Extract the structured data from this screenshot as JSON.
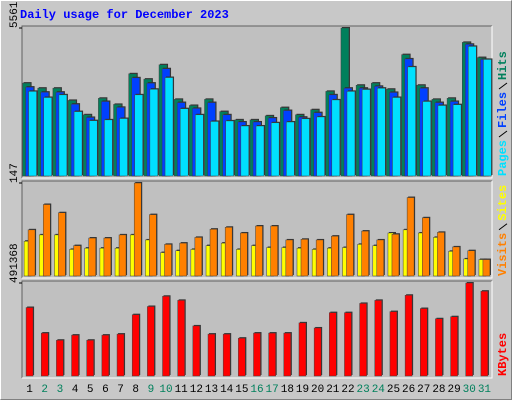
{
  "chart_data": [
    {
      "type": "bar",
      "title": "Daily usage for December 2023",
      "ylim": [
        0,
        5561
      ],
      "yticks": [
        5561
      ],
      "series": [
        {
          "name": "Hits",
          "color": "#00805c",
          "values": [
            3490,
            3300,
            3300,
            2840,
            2300,
            2920,
            2690,
            3840,
            3640,
            4180,
            2880,
            2650,
            2880,
            2420,
            2110,
            2110,
            2260,
            2570,
            2300,
            2490,
            3180,
            5561,
            3410,
            3490,
            3260,
            4560,
            3410,
            2880,
            2920,
            5020,
            4450
          ]
        },
        {
          "name": "Files",
          "color": "#0040ff",
          "values": [
            3340,
            3150,
            3150,
            2700,
            2200,
            2800,
            2580,
            3690,
            3490,
            4030,
            2760,
            2540,
            2760,
            2300,
            2030,
            2030,
            2180,
            2460,
            2210,
            2380,
            3050,
            3300,
            3300,
            3370,
            3140,
            4400,
            3300,
            2760,
            2800,
            4950,
            4380
          ]
        },
        {
          "name": "Pages",
          "color": "#00e0ff",
          "values": [
            3180,
            2950,
            3050,
            2420,
            2080,
            2110,
            2160,
            3050,
            3260,
            3700,
            2530,
            2300,
            2050,
            2070,
            1880,
            1880,
            2000,
            2030,
            2150,
            2220,
            2860,
            3180,
            3250,
            3300,
            2950,
            4100,
            2800,
            2650,
            2680,
            4870,
            4380
          ]
        }
      ]
    },
    {
      "type": "bar",
      "ylim": [
        0,
        147
      ],
      "yticks": [
        147
      ],
      "series": [
        {
          "name": "Sites",
          "color": "#ffff00",
          "values": [
            55,
            65,
            65,
            42,
            44,
            44,
            44,
            65,
            57,
            37,
            40,
            42,
            48,
            52,
            42,
            48,
            45,
            45,
            44,
            42,
            44,
            45,
            50,
            48,
            68,
            73,
            68,
            61,
            39,
            27,
            26
          ]
        },
        {
          "name": "Visits",
          "color": "#ff8000",
          "values": [
            73,
            113,
            100,
            48,
            60,
            60,
            65,
            147,
            97,
            50,
            52,
            61,
            74,
            77,
            68,
            79,
            79,
            57,
            58,
            57,
            63,
            97,
            71,
            57,
            66,
            124,
            92,
            69,
            46,
            40,
            26
          ]
        }
      ]
    },
    {
      "type": "bar",
      "ylim": [
        0,
        491368
      ],
      "yticks": [
        491368
      ],
      "categories": [
        "1",
        "2",
        "3",
        "4",
        "5",
        "6",
        "7",
        "8",
        "9",
        "10",
        "11",
        "12",
        "13",
        "14",
        "15",
        "16",
        "17",
        "18",
        "19",
        "20",
        "21",
        "22",
        "23",
        "24",
        "25",
        "26",
        "27",
        "28",
        "29",
        "30",
        "31"
      ],
      "category_colors": [
        "#000000",
        "#00805c",
        "#00805c",
        "#000000",
        "#000000",
        "#000000",
        "#000000",
        "#000000",
        "#00805c",
        "#00805c",
        "#000000",
        "#000000",
        "#000000",
        "#000000",
        "#000000",
        "#00805c",
        "#00805c",
        "#000000",
        "#000000",
        "#000000",
        "#000000",
        "#000000",
        "#00805c",
        "#00805c",
        "#000000",
        "#000000",
        "#000000",
        "#000000",
        "#000000",
        "#00805c",
        "#00805c"
      ],
      "series": [
        {
          "name": "KBytes",
          "color": "#ff0000",
          "values": [
            361800,
            226800,
            189000,
            216000,
            189000,
            216000,
            221400,
            324000,
            367200,
            421200,
            399600,
            264600,
            221400,
            221400,
            199800,
            226800,
            226800,
            226800,
            280800,
            253800,
            334800,
            334800,
            383400,
            399600,
            340200,
            426600,
            356400,
            302400,
            313200,
            491368,
            448200
          ]
        }
      ]
    }
  ]
}
